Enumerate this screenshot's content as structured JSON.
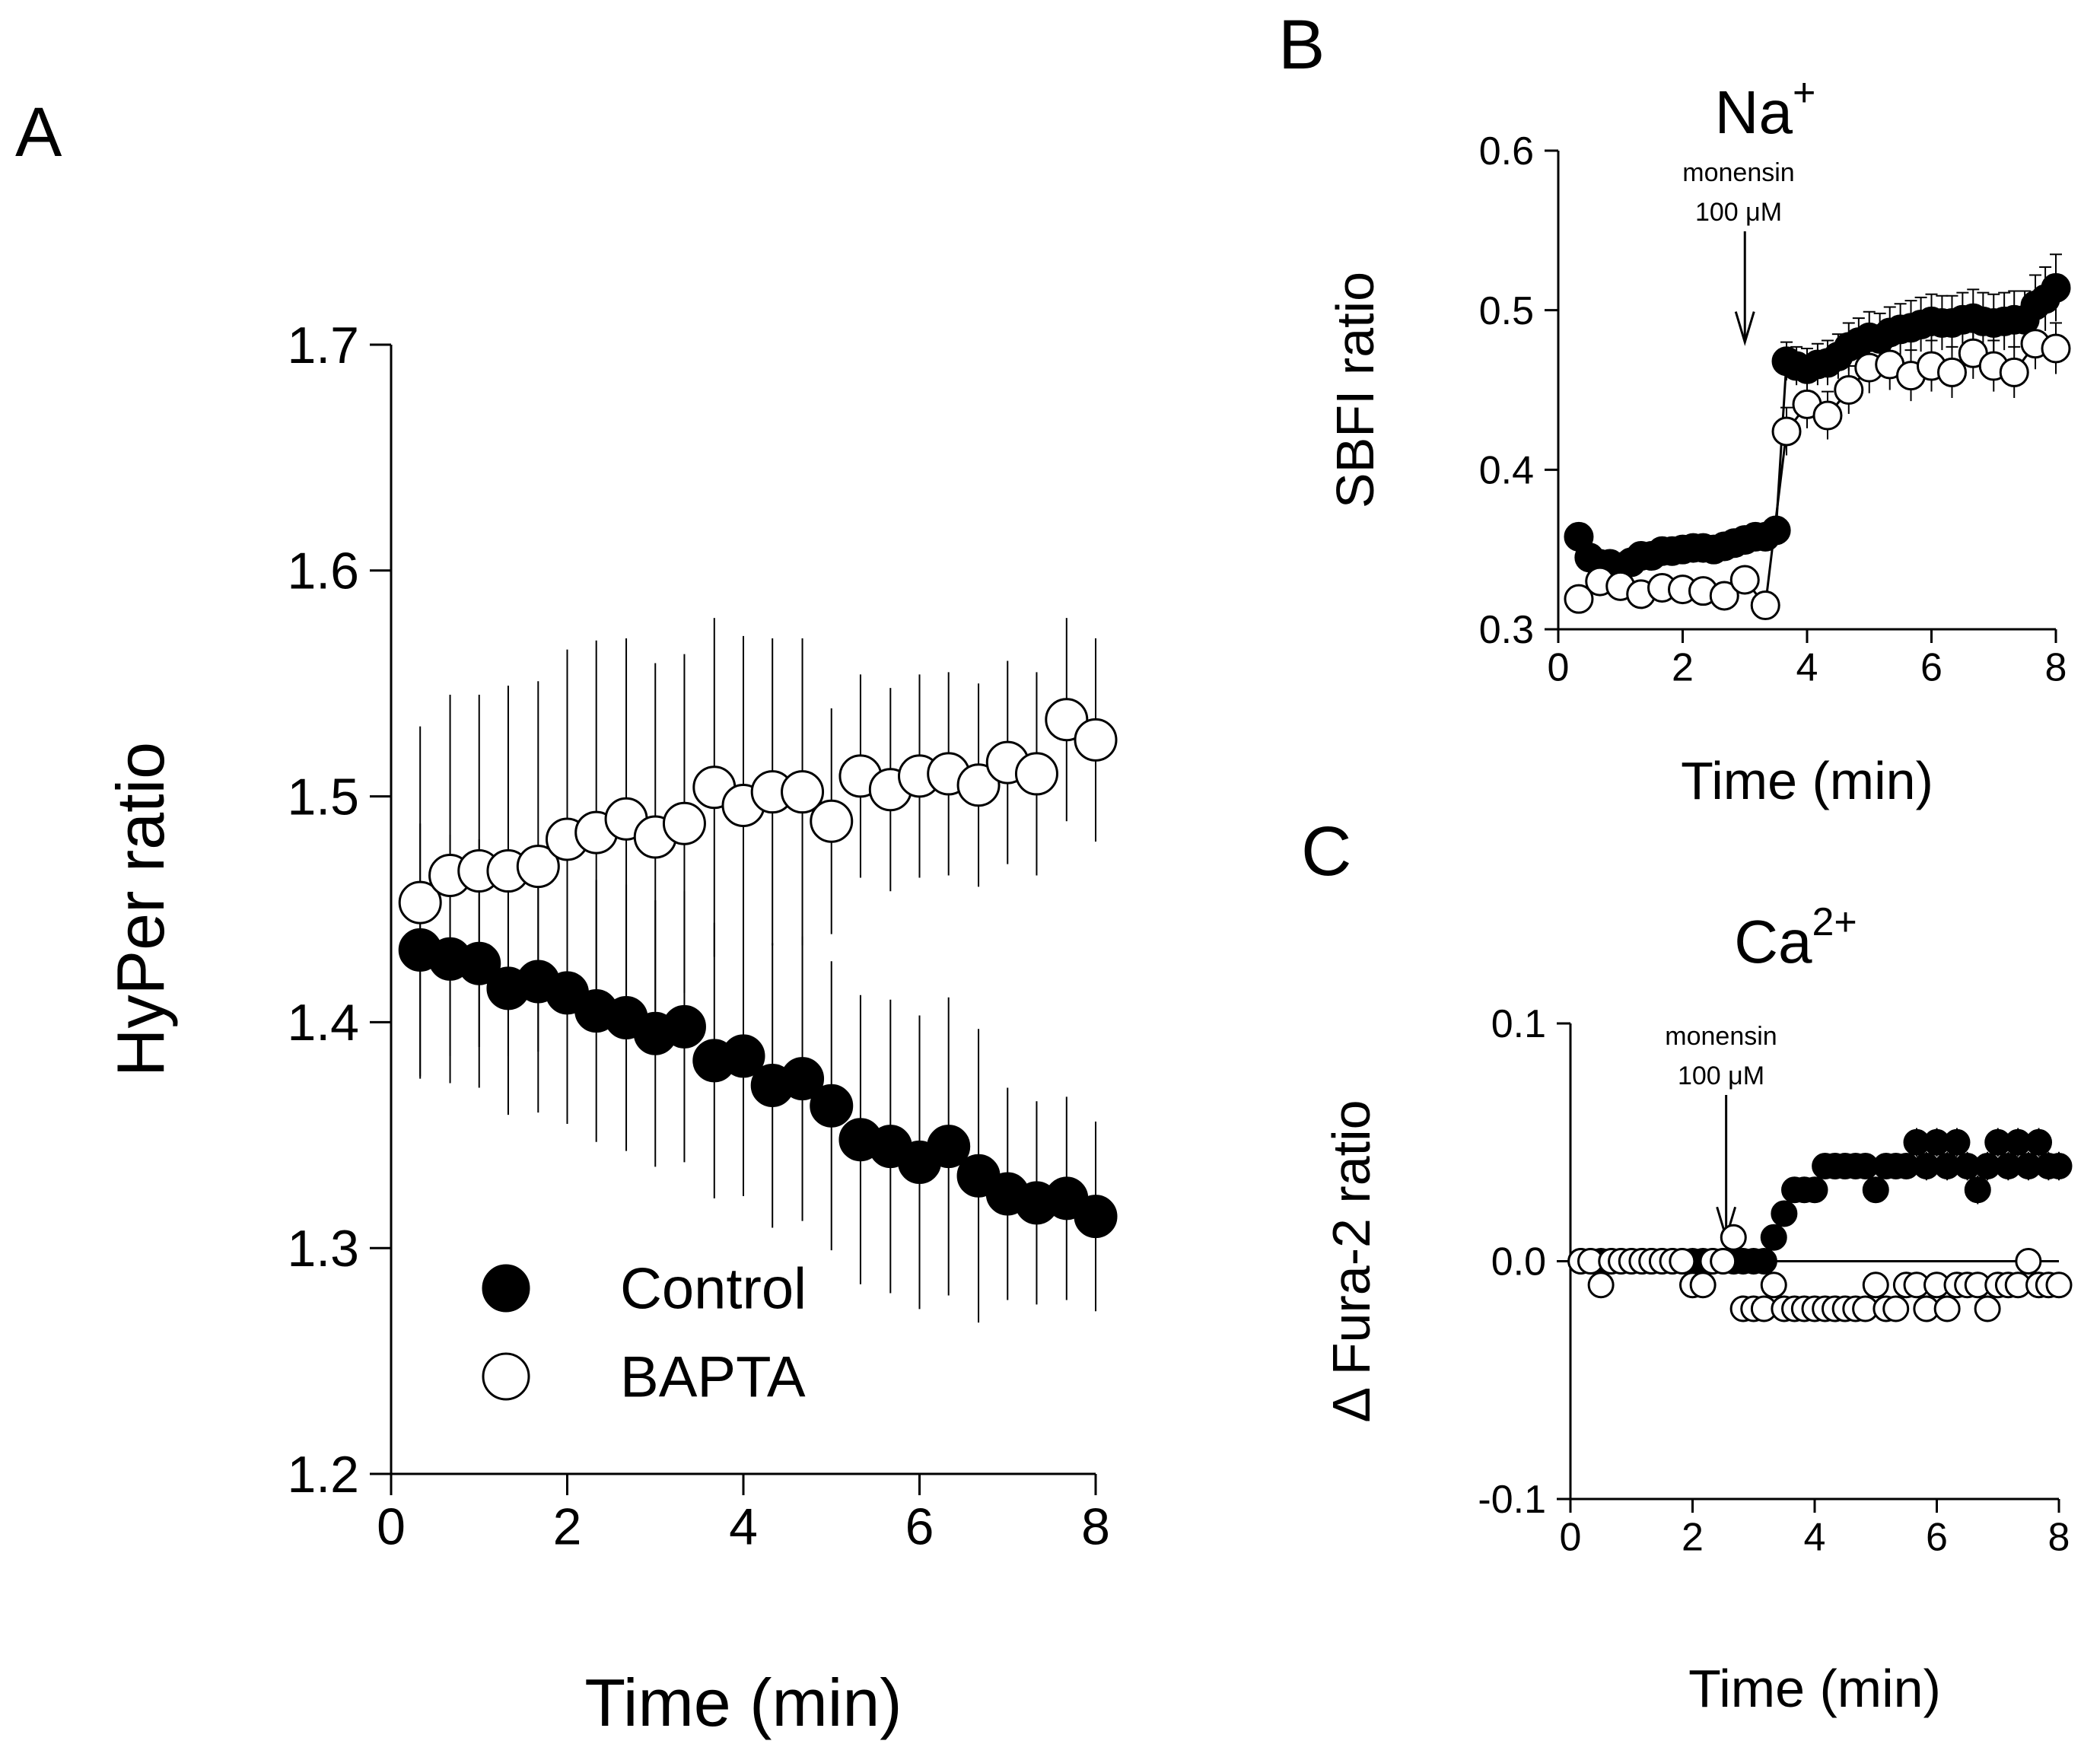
{
  "chart_data": [
    {
      "panel": "A",
      "type": "scatter",
      "title": "",
      "xlabel": "Time (min)",
      "ylabel": "HyPer ratio",
      "xlim": [
        0,
        8
      ],
      "ylim": [
        1.2,
        1.7
      ],
      "xticks": [
        "0",
        "2",
        "4",
        "6",
        "8"
      ],
      "yticks": [
        "1.2",
        "1.3",
        "1.4",
        "1.5",
        "1.6",
        "1.7"
      ],
      "legend": {
        "placement": "bottom-left",
        "entries": [
          "Control",
          "BAPTA"
        ]
      },
      "series": [
        {
          "name": "Control",
          "style": "filled",
          "x": [
            0.33,
            0.67,
            1.0,
            1.33,
            1.67,
            2.0,
            2.33,
            2.67,
            3.0,
            3.33,
            3.67,
            4.0,
            4.33,
            4.67,
            5.0,
            5.33,
            5.67,
            6.0,
            6.33,
            6.67,
            7.0,
            7.33,
            7.67,
            8.0
          ],
          "y": [
            1.432,
            1.428,
            1.426,
            1.415,
            1.418,
            1.413,
            1.405,
            1.402,
            1.395,
            1.398,
            1.383,
            1.385,
            1.372,
            1.375,
            1.363,
            1.348,
            1.345,
            1.338,
            1.345,
            1.332,
            1.324,
            1.32,
            1.322,
            1.314
          ],
          "err": [
            0.056,
            0.055,
            0.055,
            0.056,
            0.058,
            0.058,
            0.058,
            0.059,
            0.059,
            0.06,
            0.061,
            0.062,
            0.063,
            0.063,
            0.064,
            0.064,
            0.065,
            0.065,
            0.066,
            0.065,
            0.047,
            0.045,
            0.045,
            0.042
          ]
        },
        {
          "name": "BAPTA",
          "style": "open",
          "x": [
            0.33,
            0.67,
            1.0,
            1.33,
            1.67,
            2.0,
            2.33,
            2.67,
            3.0,
            3.33,
            3.67,
            4.0,
            4.33,
            4.67,
            5.0,
            5.33,
            5.67,
            6.0,
            6.33,
            6.67,
            7.0,
            7.33,
            7.67,
            8.0
          ],
          "y": [
            1.453,
            1.465,
            1.467,
            1.467,
            1.469,
            1.481,
            1.484,
            1.49,
            1.482,
            1.488,
            1.504,
            1.496,
            1.502,
            1.502,
            1.489,
            1.509,
            1.503,
            1.509,
            1.51,
            1.505,
            1.515,
            1.51,
            1.534,
            1.525
          ],
          "err": [
            0.078,
            0.08,
            0.078,
            0.082,
            0.082,
            0.084,
            0.085,
            0.08,
            0.077,
            0.075,
            0.075,
            0.075,
            0.068,
            0.068,
            0.05,
            0.045,
            0.045,
            0.045,
            0.045,
            0.045,
            0.045,
            0.045,
            0.045,
            0.045
          ]
        }
      ]
    },
    {
      "panel": "B",
      "type": "line",
      "title": "Na",
      "title_superscript": "+",
      "xlabel": "Time (min)",
      "ylabel": "SBFI ratio",
      "xlim": [
        0,
        8
      ],
      "ylim": [
        0.3,
        0.6
      ],
      "xticks": [
        "0",
        "2",
        "4",
        "6",
        "8"
      ],
      "yticks": [
        "0.3",
        "0.4",
        "0.5",
        "0.6"
      ],
      "annotation": {
        "lines": [
          "monensin",
          "100 μM"
        ],
        "x": 3.0,
        "arrow_to_y": 0.48
      },
      "series": [
        {
          "name": "Control",
          "style": "filled",
          "x": [
            0.33,
            0.5,
            0.67,
            0.83,
            1.0,
            1.17,
            1.33,
            1.5,
            1.67,
            1.83,
            2.0,
            2.17,
            2.33,
            2.5,
            2.67,
            2.83,
            3.0,
            3.17,
            3.33,
            3.5,
            3.67,
            3.83,
            4.0,
            4.17,
            4.33,
            4.5,
            4.67,
            4.83,
            5.0,
            5.17,
            5.33,
            5.5,
            5.67,
            5.83,
            6.0,
            6.17,
            6.33,
            6.5,
            6.67,
            6.83,
            7.0,
            7.17,
            7.33,
            7.5,
            7.67,
            7.83,
            8.0
          ],
          "y": [
            0.358,
            0.345,
            0.341,
            0.341,
            0.339,
            0.342,
            0.346,
            0.346,
            0.349,
            0.349,
            0.35,
            0.351,
            0.351,
            0.35,
            0.352,
            0.354,
            0.356,
            0.358,
            0.358,
            0.362,
            0.468,
            0.465,
            0.463,
            0.466,
            0.467,
            0.471,
            0.477,
            0.48,
            0.483,
            0.482,
            0.486,
            0.488,
            0.489,
            0.491,
            0.493,
            0.492,
            0.492,
            0.494,
            0.495,
            0.493,
            0.492,
            0.493,
            0.494,
            0.494,
            0.503,
            0.507,
            0.514
          ],
          "err": [
            0.004,
            0.004,
            0.004,
            0.004,
            0.004,
            0.004,
            0.004,
            0.004,
            0.004,
            0.004,
            0.004,
            0.004,
            0.004,
            0.004,
            0.004,
            0.004,
            0.004,
            0.004,
            0.004,
            0.004,
            0.012,
            0.012,
            0.013,
            0.013,
            0.014,
            0.014,
            0.015,
            0.015,
            0.016,
            0.016,
            0.016,
            0.016,
            0.017,
            0.017,
            0.017,
            0.017,
            0.017,
            0.017,
            0.018,
            0.018,
            0.018,
            0.018,
            0.018,
            0.018,
            0.019,
            0.02,
            0.021
          ]
        },
        {
          "name": "BAPTA",
          "style": "open",
          "x": [
            0.33,
            0.67,
            1.0,
            1.33,
            1.67,
            2.0,
            2.33,
            2.67,
            3.0,
            3.33,
            3.67,
            4.0,
            4.33,
            4.67,
            5.0,
            5.33,
            5.67,
            6.0,
            6.33,
            6.67,
            7.0,
            7.33,
            7.67,
            8.0
          ],
          "y": [
            0.319,
            0.33,
            0.327,
            0.322,
            0.326,
            0.325,
            0.324,
            0.321,
            0.331,
            0.315,
            0.424,
            0.441,
            0.434,
            0.45,
            0.464,
            0.466,
            0.459,
            0.465,
            0.461,
            0.473,
            0.465,
            0.461,
            0.479,
            0.476
          ],
          "err": [
            0.004,
            0.004,
            0.004,
            0.004,
            0.004,
            0.004,
            0.004,
            0.004,
            0.004,
            0.004,
            0.015,
            0.015,
            0.015,
            0.015,
            0.016,
            0.016,
            0.016,
            0.016,
            0.016,
            0.016,
            0.016,
            0.016,
            0.016,
            0.016
          ]
        }
      ]
    },
    {
      "panel": "C",
      "type": "scatter",
      "title": "Ca",
      "title_superscript": "2+",
      "xlabel": "Time (min)",
      "ylabel": "Δ Fura-2 ratio",
      "xlim": [
        0,
        8
      ],
      "ylim": [
        -0.1,
        0.1
      ],
      "xticks": [
        "0",
        "2",
        "4",
        "6",
        "8"
      ],
      "yticks": [
        "-0.1",
        "0.0",
        "0.1"
      ],
      "annotation": {
        "lines": [
          "monensin",
          "100 μM"
        ],
        "x": 2.55,
        "arrow_to_y": 0.01
      },
      "series": [
        {
          "name": "Control",
          "style": "filled",
          "x": [
            0.17,
            0.33,
            0.5,
            0.67,
            0.83,
            1.0,
            1.17,
            1.33,
            1.5,
            1.67,
            1.83,
            2.0,
            2.17,
            2.33,
            2.5,
            2.67,
            2.83,
            3.0,
            3.17,
            3.33,
            3.5,
            3.67,
            3.83,
            4.0,
            4.17,
            4.33,
            4.5,
            4.67,
            4.83,
            5.0,
            5.17,
            5.33,
            5.5,
            5.67,
            5.83,
            6.0,
            6.17,
            6.33,
            6.5,
            6.67,
            6.83,
            7.0,
            7.17,
            7.33,
            7.5,
            7.67,
            7.83,
            8.0
          ],
          "y": [
            0.0,
            0.0,
            0.0,
            0.0,
            0.0,
            0.0,
            0.0,
            0.0,
            0.0,
            0.0,
            0.0,
            0.0,
            0.0,
            0.0,
            0.0,
            0.0,
            0.0,
            0.0,
            0.0,
            0.01,
            0.02,
            0.03,
            0.03,
            0.03,
            0.04,
            0.04,
            0.04,
            0.04,
            0.04,
            0.03,
            0.04,
            0.04,
            0.04,
            0.05,
            0.04,
            0.05,
            0.04,
            0.05,
            0.04,
            0.03,
            0.04,
            0.05,
            0.04,
            0.05,
            0.04,
            0.05,
            0.04,
            0.04
          ],
          "err": [
            0.002,
            0.002,
            0.002,
            0.002,
            0.002,
            0.002,
            0.002,
            0.002,
            0.002,
            0.002,
            0.002,
            0.002,
            0.002,
            0.002,
            0.002,
            0.002,
            0.002,
            0.002,
            0.002,
            0.003,
            0.003,
            0.004,
            0.004,
            0.004,
            0.005,
            0.005,
            0.005,
            0.005,
            0.005,
            0.005,
            0.005,
            0.005,
            0.005,
            0.006,
            0.006,
            0.006,
            0.006,
            0.006,
            0.006,
            0.006,
            0.006,
            0.006,
            0.006,
            0.006,
            0.006,
            0.006,
            0.006,
            0.006
          ]
        },
        {
          "name": "BAPTA",
          "style": "open",
          "x": [
            0.17,
            0.33,
            0.5,
            0.67,
            0.83,
            1.0,
            1.17,
            1.33,
            1.5,
            1.67,
            1.83,
            2.0,
            2.17,
            2.33,
            2.5,
            2.67,
            2.83,
            3.0,
            3.17,
            3.33,
            3.5,
            3.67,
            3.83,
            4.0,
            4.17,
            4.33,
            4.5,
            4.67,
            4.83,
            5.0,
            5.17,
            5.33,
            5.5,
            5.67,
            5.83,
            6.0,
            6.17,
            6.33,
            6.5,
            6.67,
            6.83,
            7.0,
            7.17,
            7.33,
            7.5,
            7.67,
            7.83,
            8.0
          ],
          "y": [
            0.0,
            0.0,
            -0.01,
            0.0,
            0.0,
            0.0,
            0.0,
            0.0,
            0.0,
            0.0,
            0.0,
            -0.01,
            -0.01,
            0.0,
            0.0,
            0.01,
            -0.02,
            -0.02,
            -0.02,
            -0.01,
            -0.02,
            -0.02,
            -0.02,
            -0.02,
            -0.02,
            -0.02,
            -0.02,
            -0.02,
            -0.02,
            -0.01,
            -0.02,
            -0.02,
            -0.01,
            -0.01,
            -0.02,
            -0.01,
            -0.02,
            -0.01,
            -0.01,
            -0.01,
            -0.02,
            -0.01,
            -0.01,
            -0.01,
            0.0,
            -0.01,
            -0.01,
            -0.01
          ],
          "err": [
            0.002,
            0.002,
            0.002,
            0.002,
            0.002,
            0.002,
            0.002,
            0.002,
            0.002,
            0.002,
            0.002,
            0.002,
            0.002,
            0.002,
            0.002,
            0.002,
            0.002,
            0.002,
            0.002,
            0.002,
            0.002,
            0.002,
            0.002,
            0.002,
            0.002,
            0.002,
            0.002,
            0.002,
            0.002,
            0.002,
            0.002,
            0.002,
            0.002,
            0.002,
            0.002,
            0.002,
            0.002,
            0.002,
            0.002,
            0.002,
            0.002,
            0.002,
            0.002,
            0.002,
            0.002,
            0.002,
            0.002,
            0.002
          ]
        }
      ]
    }
  ]
}
